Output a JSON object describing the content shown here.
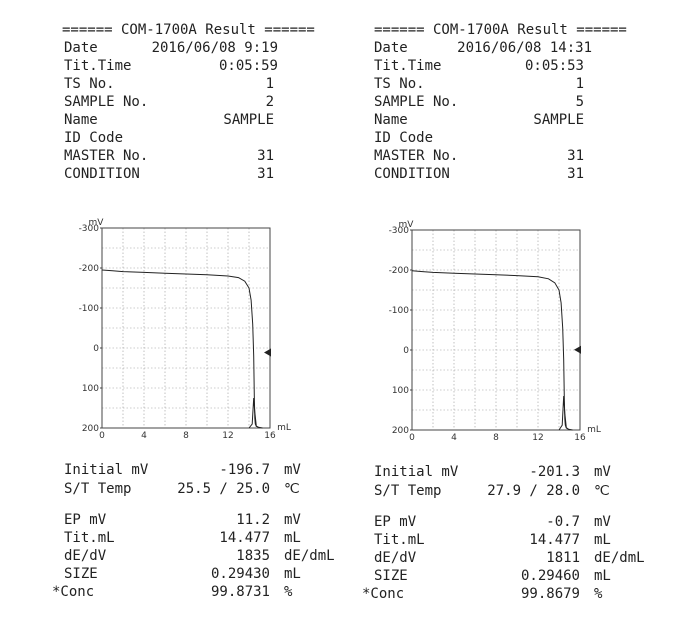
{
  "reports": [
    {
      "title": "====== COM-1700A Result ======",
      "date_label": "Date",
      "date_value": "2016/06/08  9:19",
      "tittime_label": "Tit.Time",
      "tittime_value": "0:05:59",
      "ts_label": "TS No.",
      "ts_value": "1",
      "sample_label": "SAMPLE No.",
      "sample_value": "2",
      "name_label": "Name",
      "name_value": "SAMPLE",
      "idcode_label": "ID Code",
      "master_label": "MASTER No.",
      "master_value": "31",
      "condition_label": "CONDITION",
      "condition_value": "31",
      "initial_label": "Initial mV",
      "initial_value": "-196.7",
      "initial_unit": "mV",
      "st_label": "S/T Temp",
      "st_value": "25.5 /  25.0",
      "st_unit": "℃",
      "ep_label": "EP mV",
      "ep_value": "11.2",
      "ep_unit": "mV",
      "titml_label": "Tit.mL",
      "titml_value": "14.477",
      "titml_unit": "mL",
      "dedv_label": "dE/dV",
      "dedv_value": "1835",
      "dedv_unit": "dE/dmL",
      "size_label": "SIZE",
      "size_value": "0.29430",
      "size_unit": "mL",
      "conc_label": "*Conc",
      "conc_value": "99.8731",
      "conc_unit": "%"
    },
    {
      "title": "====== COM-1700A Result ======",
      "date_label": "Date",
      "date_value": "2016/06/08 14:31",
      "tittime_label": "Tit.Time",
      "tittime_value": "0:05:53",
      "ts_label": "TS No.",
      "ts_value": "1",
      "sample_label": "SAMPLE No.",
      "sample_value": "5",
      "name_label": "Name",
      "name_value": "SAMPLE",
      "idcode_label": "ID Code",
      "master_label": "MASTER No.",
      "master_value": "31",
      "condition_label": "CONDITION",
      "condition_value": "31",
      "initial_label": "Initial mV",
      "initial_value": "-201.3",
      "initial_unit": "mV",
      "st_label": "S/T Temp",
      "st_value": "27.9 /  28.0",
      "st_unit": "℃",
      "ep_label": "EP mV",
      "ep_value": "-0.7",
      "ep_unit": "mV",
      "titml_label": "Tit.mL",
      "titml_value": "14.477",
      "titml_unit": "mL",
      "dedv_label": "dE/dV",
      "dedv_value": "1811",
      "dedv_unit": "dE/dmL",
      "size_label": "SIZE",
      "size_value": "0.29460",
      "size_unit": "mL",
      "conc_label": "*Conc",
      "conc_value": "99.8679",
      "conc_unit": "%"
    }
  ],
  "chart_data": [
    {
      "type": "line",
      "ylabel": "mV",
      "xlabel": "mL",
      "ylim": [
        -300,
        200
      ],
      "y_reversed": true,
      "xlim": [
        0,
        16
      ],
      "yticks": [
        "-300",
        "-200",
        "-100",
        "0",
        "100",
        "200"
      ],
      "xticks": [
        "0",
        "4",
        "8",
        "12",
        "16"
      ],
      "grid": true,
      "endpoint_marker_mV": 11.2,
      "series": [
        {
          "x": [
            0,
            1,
            2,
            4,
            6,
            8,
            10,
            12,
            13,
            13.6,
            14,
            14.2,
            14.35,
            14.45,
            14.5,
            14.55,
            14.6,
            14.7,
            14.9,
            15.3
          ],
          "values": [
            -195,
            -193,
            -191,
            -189,
            -187,
            -185,
            -183,
            -180,
            -176,
            -167,
            -150,
            -120,
            -60,
            20,
            120,
            175,
            190,
            196,
            198,
            200
          ]
        },
        {
          "x": [
            14.0,
            14.3,
            14.45,
            14.55,
            14.7,
            15.0
          ],
          "values": [
            200,
            190,
            125,
            160,
            195,
            200
          ]
        }
      ]
    },
    {
      "type": "line",
      "ylabel": "mV",
      "xlabel": "mL",
      "ylim": [
        -300,
        200
      ],
      "y_reversed": true,
      "xlim": [
        0,
        16
      ],
      "yticks": [
        "-300",
        "-200",
        "-100",
        "0",
        "100",
        "200"
      ],
      "xticks": [
        "0",
        "4",
        "8",
        "12",
        "16"
      ],
      "grid": true,
      "endpoint_marker_mV": -0.7,
      "series": [
        {
          "x": [
            0,
            1,
            2,
            4,
            6,
            8,
            10,
            12,
            13,
            13.6,
            14,
            14.2,
            14.35,
            14.45,
            14.5,
            14.55,
            14.6,
            14.7,
            14.9,
            15.3
          ],
          "values": [
            -198,
            -196,
            -194,
            -192,
            -190,
            -188,
            -186,
            -183,
            -178,
            -168,
            -150,
            -118,
            -55,
            25,
            120,
            172,
            188,
            195,
            198,
            200
          ]
        },
        {
          "x": [
            14.0,
            14.3,
            14.45,
            14.55,
            14.7,
            15.0
          ],
          "values": [
            200,
            188,
            115,
            158,
            194,
            200
          ]
        }
      ]
    }
  ]
}
